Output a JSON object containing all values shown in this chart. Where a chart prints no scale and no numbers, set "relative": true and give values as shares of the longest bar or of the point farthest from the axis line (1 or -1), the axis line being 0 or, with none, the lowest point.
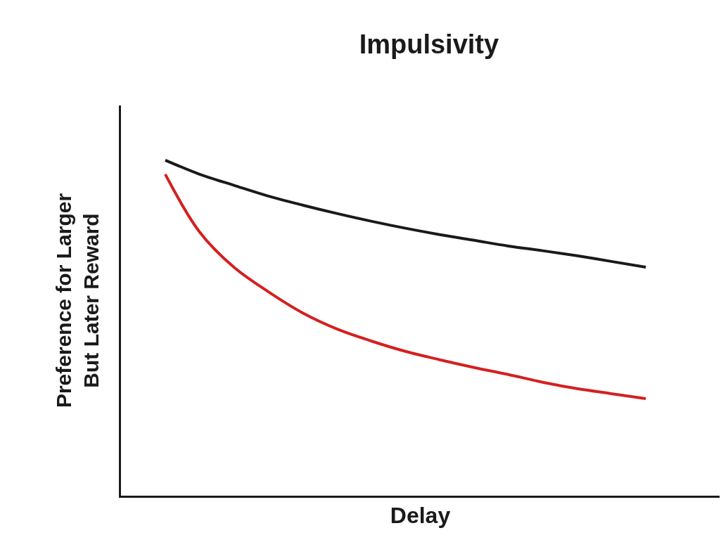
{
  "chart_data": {
    "type": "line",
    "relative": true,
    "title": "Impulsivity",
    "xlabel": "Delay",
    "ylabel": "Preference for Larger\nBut Later Reward",
    "categories": [
      null,
      null,
      null,
      null,
      null,
      null,
      null,
      null,
      null,
      null,
      null,
      null,
      null,
      null,
      null
    ],
    "series": [
      {
        "color": "#1a1a1a",
        "values": [
          1,
          0.958,
          0.925,
          0.893,
          0.866,
          0.841,
          0.818,
          0.797,
          0.778,
          0.761,
          0.744,
          0.73,
          0.715,
          0.698,
          0.681
        ]
      },
      {
        "color": "#d42020",
        "values": [
          0.958,
          0.786,
          0.681,
          0.608,
          0.545,
          0.497,
          0.461,
          0.43,
          0.405,
          0.382,
          0.361,
          0.338,
          0.319,
          0.304,
          0.289
        ]
      }
    ],
    "marker": "none",
    "line_style": "solid",
    "tick_labels": false
  }
}
